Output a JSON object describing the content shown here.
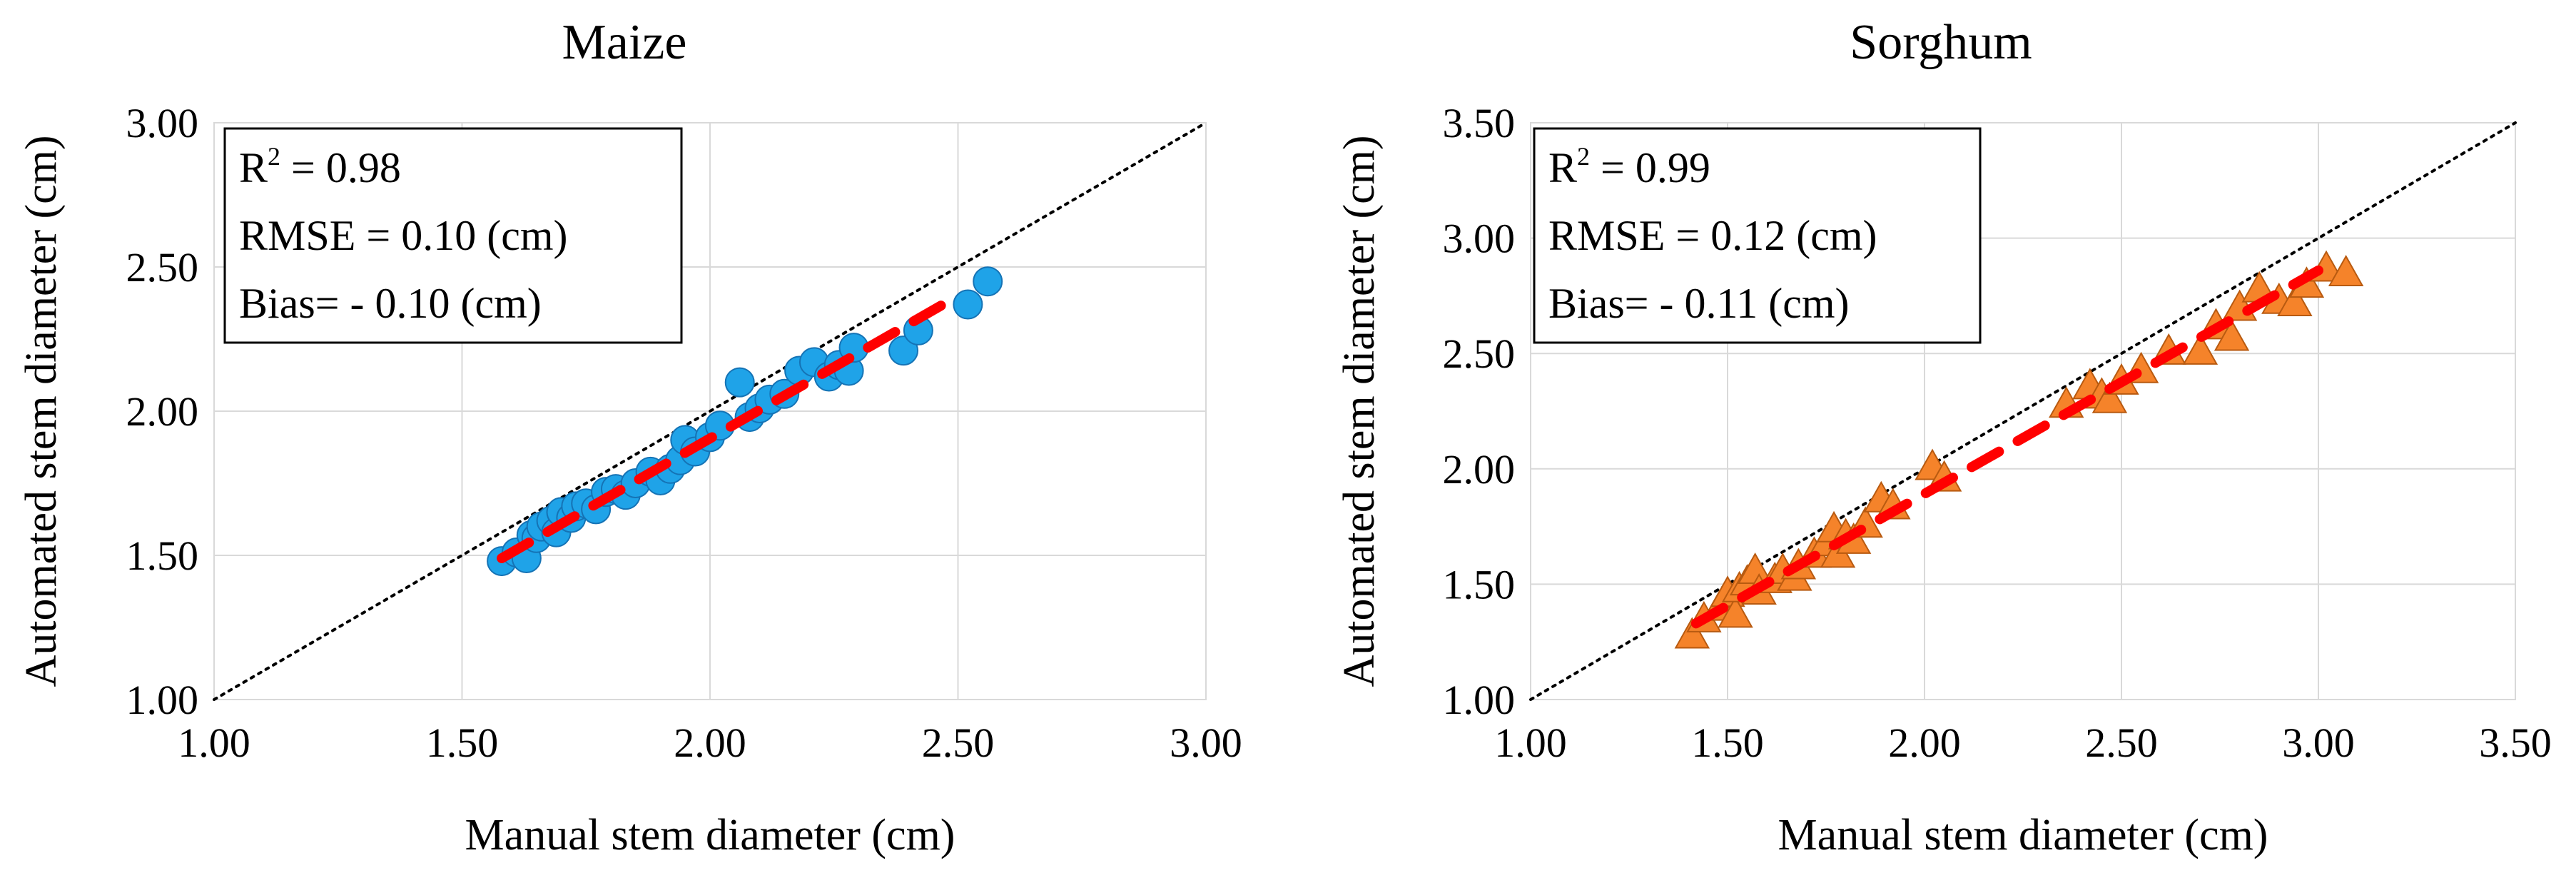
{
  "chart_data": [
    {
      "type": "scatter",
      "title": "Maize",
      "xlabel": "Manual stem diameter (cm)",
      "ylabel": "Automated stem diameter (cm)",
      "xlim": [
        1.0,
        3.0
      ],
      "ylim": [
        1.0,
        3.0
      ],
      "xticks": [
        1.0,
        1.5,
        2.0,
        2.5,
        3.0
      ],
      "yticks": [
        1.0,
        1.5,
        2.0,
        2.5,
        3.0
      ],
      "xtick_labels": [
        "1.00",
        "1.50",
        "2.00",
        "2.50",
        "3.00"
      ],
      "ytick_labels": [
        "1.00",
        "1.50",
        "2.00",
        "2.50",
        "3.00"
      ],
      "grid": true,
      "marker": "circle",
      "colors": {
        "marker_fill": "#1fa3e8",
        "marker_edge": "#1573b5",
        "fit_line": "#ff0000",
        "one_to_one": "#000000",
        "grid": "#d9d9d9"
      },
      "stats": {
        "r2_prefix": "R",
        "r2_sup": "2",
        "r2_value": " = 0.98",
        "rmse": "RMSE = 0.10 (cm)",
        "bias": "Bias= - 0.10 (cm)"
      },
      "fit_line": {
        "x": [
          1.58,
          2.5
        ],
        "y": [
          1.49,
          2.4
        ]
      },
      "one_to_one": {
        "x": [
          1.0,
          3.0
        ],
        "y": [
          1.0,
          3.0
        ]
      },
      "points": {
        "x": [
          1.58,
          1.61,
          1.63,
          1.64,
          1.65,
          1.66,
          1.68,
          1.69,
          1.7,
          1.72,
          1.73,
          1.75,
          1.77,
          1.79,
          1.81,
          1.83,
          1.85,
          1.88,
          1.9,
          1.92,
          1.94,
          1.95,
          1.97,
          2.0,
          2.02,
          2.06,
          2.08,
          2.1,
          2.12,
          2.15,
          2.18,
          2.21,
          2.24,
          2.26,
          2.28,
          2.29,
          2.39,
          2.42,
          2.52,
          2.56
        ],
        "y": [
          1.48,
          1.51,
          1.49,
          1.57,
          1.56,
          1.6,
          1.62,
          1.58,
          1.65,
          1.63,
          1.67,
          1.68,
          1.66,
          1.72,
          1.73,
          1.71,
          1.75,
          1.79,
          1.76,
          1.8,
          1.83,
          1.9,
          1.86,
          1.91,
          1.95,
          2.1,
          1.98,
          2.01,
          2.04,
          2.06,
          2.14,
          2.17,
          2.12,
          2.16,
          2.14,
          2.22,
          2.21,
          2.28,
          2.37,
          2.45
        ]
      }
    },
    {
      "type": "scatter",
      "title": "Sorghum",
      "xlabel": "Manual stem diameter (cm)",
      "ylabel": "Automated stem diameter (cm)",
      "xlim": [
        1.0,
        3.5
      ],
      "ylim": [
        1.0,
        3.5
      ],
      "xticks": [
        1.0,
        1.5,
        2.0,
        2.5,
        3.0,
        3.5
      ],
      "yticks": [
        1.0,
        1.5,
        2.0,
        2.5,
        3.0,
        3.5
      ],
      "xtick_labels": [
        "1.00",
        "1.50",
        "2.00",
        "2.50",
        "3.00",
        "3.50"
      ],
      "ytick_labels": [
        "1.00",
        "1.50",
        "2.00",
        "2.50",
        "3.00",
        "3.50"
      ],
      "grid": true,
      "marker": "triangle",
      "colors": {
        "marker_fill": "#f5832a",
        "marker_edge": "#b85a10",
        "fit_line": "#ff0000",
        "one_to_one": "#000000",
        "grid": "#d9d9d9"
      },
      "stats": {
        "r2_prefix": "R",
        "r2_sup": "2",
        "r2_value": " = 0.99",
        "rmse": "RMSE = 0.12 (cm)",
        "bias": "Bias= - 0.11 (cm)"
      },
      "fit_line": {
        "x": [
          1.42,
          3.0
        ],
        "y": [
          1.33,
          2.86
        ]
      },
      "one_to_one": {
        "x": [
          1.0,
          3.5
        ],
        "y": [
          1.0,
          3.5
        ]
      },
      "points": {
        "x": [
          1.41,
          1.44,
          1.48,
          1.5,
          1.52,
          1.53,
          1.55,
          1.57,
          1.58,
          1.62,
          1.64,
          1.67,
          1.68,
          1.72,
          1.75,
          1.77,
          1.78,
          1.8,
          1.82,
          1.85,
          1.89,
          1.92,
          2.02,
          2.05,
          2.36,
          2.42,
          2.45,
          2.47,
          2.5,
          2.55,
          2.62,
          2.7,
          2.74,
          2.78,
          2.8,
          2.85,
          2.9,
          2.94,
          2.97,
          3.02,
          3.07
        ],
        "y": [
          1.28,
          1.35,
          1.4,
          1.46,
          1.37,
          1.48,
          1.51,
          1.56,
          1.47,
          1.52,
          1.56,
          1.53,
          1.58,
          1.63,
          1.68,
          1.74,
          1.63,
          1.71,
          1.69,
          1.76,
          1.87,
          1.84,
          2.01,
          1.96,
          2.28,
          2.36,
          2.32,
          2.3,
          2.38,
          2.43,
          2.51,
          2.51,
          2.62,
          2.57,
          2.7,
          2.78,
          2.73,
          2.72,
          2.8,
          2.87,
          2.85
        ]
      }
    }
  ]
}
